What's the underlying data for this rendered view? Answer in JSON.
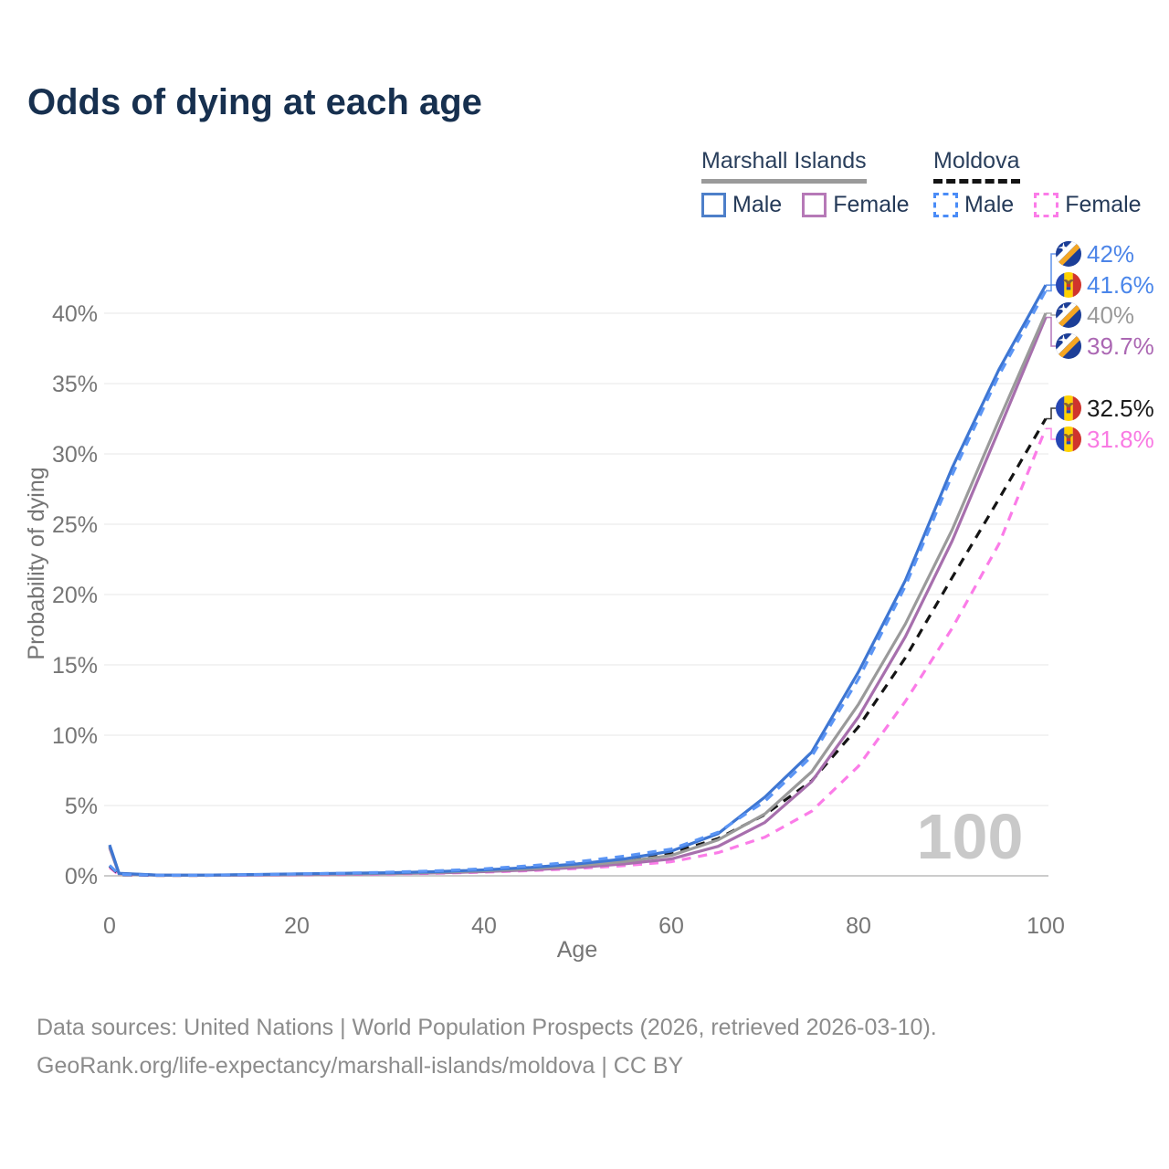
{
  "title": "Odds of dying at each age",
  "watermark": "100",
  "legend": {
    "marshall": {
      "country": "Marshall Islands",
      "male": "Male",
      "female": "Female",
      "line_style": "solid",
      "underline_color": "#9a9a9a",
      "male_color": "#4d7fc9",
      "female_color": "#b679b7"
    },
    "moldova": {
      "country": "Moldova",
      "male": "Male",
      "female": "Female",
      "line_style": "dashed",
      "underline_color": "#141414",
      "male_color": "#4a8cf7",
      "female_color": "#fb7ce8"
    }
  },
  "footer": {
    "line1": "Data sources: United Nations | World Population Prospects (2026, retrieved 2026-03-10).",
    "line2": "GeoRank.org/life-expectancy/marshall-islands/moldova | CC BY"
  },
  "chart_data": {
    "type": "line",
    "title": "Odds of dying at each age",
    "xlabel": "Age",
    "ylabel": "Probability of dying",
    "xlim": [
      0,
      100
    ],
    "ylim": [
      0,
      44
    ],
    "grid": "horizontal",
    "legend_position": "top-right",
    "x_ticks": [
      0,
      20,
      40,
      60,
      80,
      100
    ],
    "y_tick_values": [
      0,
      5,
      10,
      15,
      20,
      25,
      30,
      35,
      40
    ],
    "y_tick_labels": [
      "0%",
      "5%",
      "10%",
      "15%",
      "20%",
      "25%",
      "30%",
      "35%",
      "40%"
    ],
    "ages": [
      0,
      1,
      5,
      10,
      15,
      20,
      25,
      30,
      35,
      40,
      45,
      50,
      55,
      60,
      65,
      70,
      75,
      80,
      85,
      90,
      95,
      100
    ],
    "series": [
      {
        "name": "Marshall Islands Male",
        "country": "Marshall Islands",
        "sex": "Male",
        "flag": "marshall-islands",
        "color": "#3e76d2",
        "dashed": false,
        "end_label": "42%",
        "label_color": "#4d85e8",
        "values": [
          2.2,
          0.18,
          0.06,
          0.05,
          0.09,
          0.14,
          0.18,
          0.22,
          0.3,
          0.42,
          0.6,
          0.85,
          1.2,
          1.75,
          3.0,
          5.6,
          8.8,
          14.5,
          21.0,
          29.0,
          36.0,
          42.0
        ]
      },
      {
        "name": "Moldova Male",
        "country": "Moldova",
        "sex": "Male",
        "flag": "moldova",
        "color": "#5b95f5",
        "dashed": true,
        "end_label": "41.6%",
        "label_color": "#4a86ea",
        "values": [
          0.75,
          0.1,
          0.04,
          0.04,
          0.08,
          0.13,
          0.19,
          0.26,
          0.36,
          0.5,
          0.72,
          1.0,
          1.4,
          1.9,
          3.1,
          5.3,
          8.5,
          14.0,
          20.6,
          28.5,
          35.6,
          41.6
        ]
      },
      {
        "name": "Marshall Islands (both sexes)",
        "country": "Marshall Islands",
        "sex": "Both",
        "flag": "marshall-islands",
        "color": "#9a9a9a",
        "dashed": false,
        "end_label": "40%",
        "label_color": "#9a9a9a",
        "values": [
          2.1,
          0.16,
          0.055,
          0.045,
          0.08,
          0.12,
          0.15,
          0.19,
          0.26,
          0.36,
          0.51,
          0.72,
          1.02,
          1.45,
          2.55,
          4.4,
          7.4,
          12.2,
          17.9,
          24.6,
          32.4,
          40.0
        ]
      },
      {
        "name": "Marshall Islands Female",
        "country": "Marshall Islands",
        "sex": "Female",
        "flag": "marshall-islands",
        "color": "#a76fad",
        "dashed": false,
        "end_label": "39.7%",
        "label_color": "#ab67b3",
        "values": [
          2.0,
          0.14,
          0.05,
          0.04,
          0.06,
          0.09,
          0.12,
          0.15,
          0.21,
          0.3,
          0.42,
          0.6,
          0.85,
          1.2,
          2.1,
          3.8,
          6.7,
          11.3,
          17.0,
          23.8,
          31.7,
          39.7
        ]
      },
      {
        "name": "Moldova (both sexes)",
        "country": "Moldova",
        "sex": "Both",
        "flag": "moldova",
        "color": "#141414",
        "dashed": true,
        "end_label": "32.5%",
        "label_color": "#1a1a1a",
        "values": [
          0.7,
          0.09,
          0.035,
          0.035,
          0.07,
          0.11,
          0.16,
          0.22,
          0.31,
          0.44,
          0.62,
          0.88,
          1.2,
          1.62,
          2.65,
          4.35,
          6.75,
          10.6,
          15.5,
          21.2,
          26.8,
          32.5
        ]
      },
      {
        "name": "Moldova Female",
        "country": "Moldova",
        "sex": "Female",
        "flag": "moldova",
        "color": "#fb7ce8",
        "dashed": true,
        "end_label": "31.8%",
        "label_color": "#f97ae3",
        "values": [
          0.6,
          0.08,
          0.03,
          0.03,
          0.05,
          0.08,
          0.1,
          0.13,
          0.18,
          0.26,
          0.37,
          0.52,
          0.73,
          1.0,
          1.65,
          2.75,
          4.6,
          7.8,
          12.4,
          17.6,
          23.6,
          31.8
        ]
      }
    ]
  }
}
